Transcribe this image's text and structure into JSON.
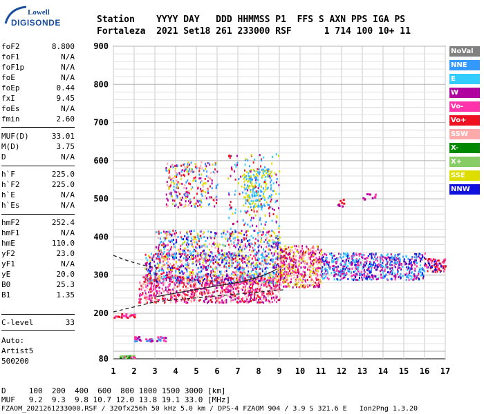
{
  "logo": {
    "line1": "Lowell",
    "line2": "DIGISONDE"
  },
  "header": {
    "line1": "Station    YYYY DAY   DDD HHMMSS P1  FFS S AXN PPS IGA PS",
    "line2": "Fortaleza  2021 Set18 261 233000 RSF      1 714 100 10+ 11"
  },
  "params": [
    {
      "label": "foF2",
      "value": "8.800"
    },
    {
      "label": "foF1",
      "value": "N/A"
    },
    {
      "label": "foF1p",
      "value": "N/A"
    },
    {
      "label": "foE",
      "value": "N/A"
    },
    {
      "label": "foEp",
      "value": "0.44"
    },
    {
      "label": "fxI",
      "value": "9.45"
    },
    {
      "label": "foEs",
      "value": "N/A"
    },
    {
      "label": "fmin",
      "value": "2.60"
    },
    {
      "label": "MUF(D)",
      "value": "33.01"
    },
    {
      "label": "M(D)",
      "value": "3.75"
    },
    {
      "label": "D",
      "value": "N/A"
    },
    {
      "label": "h`F",
      "value": "225.0"
    },
    {
      "label": "h`F2",
      "value": "225.0"
    },
    {
      "label": "h`E",
      "value": "N/A"
    },
    {
      "label": "h`Es",
      "value": "N/A"
    },
    {
      "label": "hmF2",
      "value": "252.4"
    },
    {
      "label": "hmF1",
      "value": "N/A"
    },
    {
      "label": "hmE",
      "value": "110.0"
    },
    {
      "label": "yF2",
      "value": "23.0"
    },
    {
      "label": "yF1",
      "value": "N/A"
    },
    {
      "label": "yE",
      "value": "20.0"
    },
    {
      "label": "B0",
      "value": "25.3"
    },
    {
      "label": "B1",
      "value": "1.35"
    },
    {
      "label": "C-level",
      "value": "33"
    }
  ],
  "auto": {
    "line1": "Auto:",
    "line2": "Artist5",
    "line3": "500200"
  },
  "legend": [
    {
      "label": "NoVal",
      "color": "#808080"
    },
    {
      "label": "NNE",
      "color": "#3399ff"
    },
    {
      "label": "E",
      "color": "#33ccff"
    },
    {
      "label": "W",
      "color": "#b000a0"
    },
    {
      "label": "Vo-",
      "color": "#ff33aa"
    },
    {
      "label": "Vo+",
      "color": "#ee1122"
    },
    {
      "label": "SSW",
      "color": "#ffaaaa"
    },
    {
      "label": "X-",
      "color": "#008800"
    },
    {
      "label": "X+",
      "color": "#88cc66"
    },
    {
      "label": "SSE",
      "color": "#dddd00"
    },
    {
      "label": "NNW",
      "color": "#1111dd"
    }
  ],
  "axes": {
    "x_ticks": [
      "1",
      "2",
      "3",
      "4",
      "5",
      "6",
      "7",
      "8",
      "9",
      "10",
      "11",
      "12",
      "13",
      "14",
      "15",
      "16",
      "17"
    ],
    "y_ticks": [
      "900",
      "800",
      "700",
      "600",
      "500",
      "400",
      "300",
      "200",
      "80"
    ]
  },
  "bottom": {
    "line1": "D     100  200  400  600  800 1000 1500 3000 [km]",
    "line2": "MUF   9.2  9.3  9.8 10.7 12.0 13.8 19.1 33.0 [MHz]",
    "line3": "FZAOM_2021261233000.RSF / 320fx256h 50 kHz 5.0 km / DPS-4 FZAOM 904 / 3.9 S 321.6 E   Ion2Png 1.3.20"
  }
}
